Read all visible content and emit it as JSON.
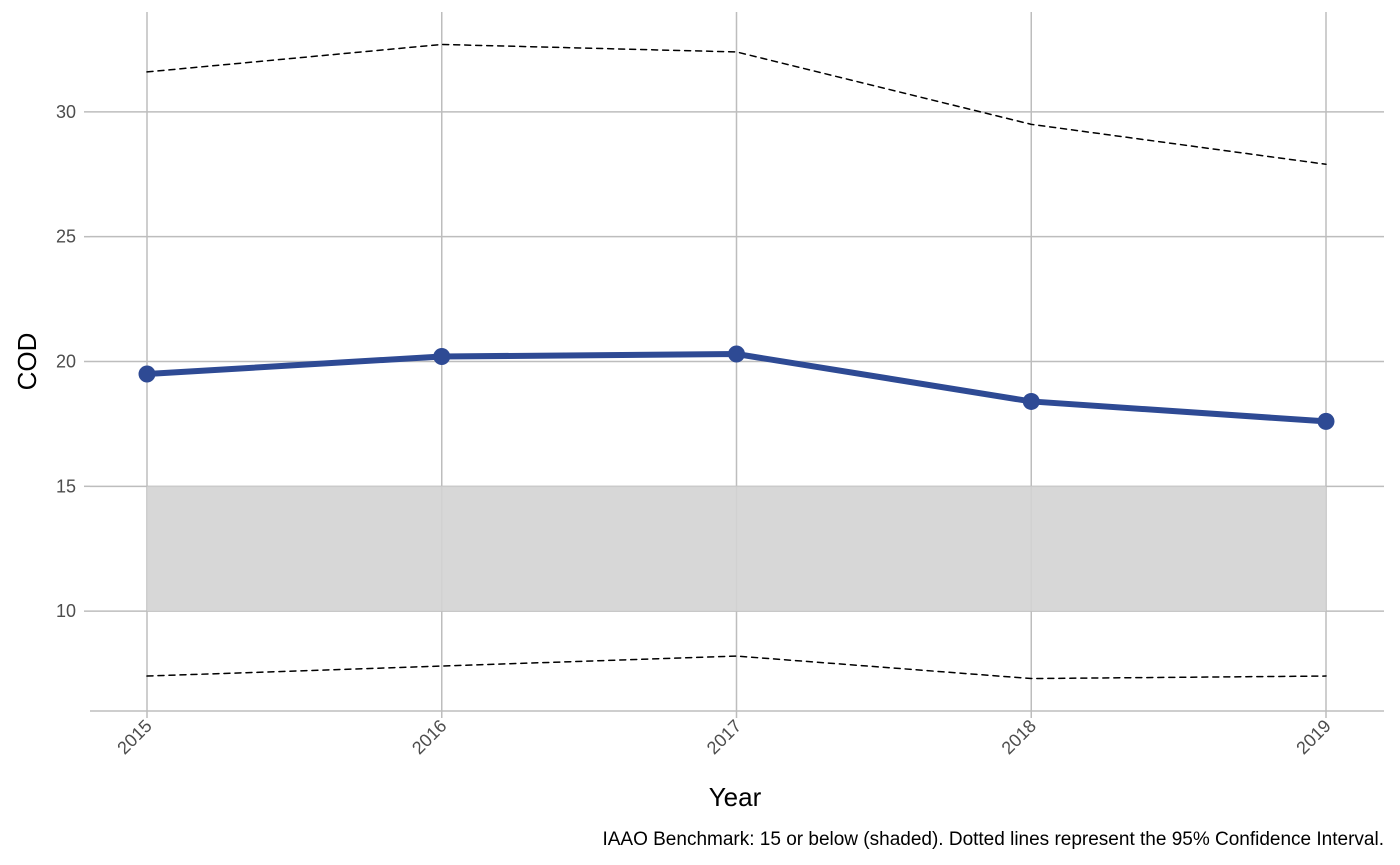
{
  "chart_data": {
    "type": "line",
    "title": "",
    "xlabel": "Year",
    "ylabel": "COD",
    "caption": "IAAO Benchmark: 15 or below (shaded). Dotted lines represent the 95% Confidence Interval.",
    "x": [
      "2015",
      "2016",
      "2017",
      "2018",
      "2019"
    ],
    "y_ticks": [
      "10",
      "15",
      "20",
      "25",
      "30"
    ],
    "ylim": [
      6,
      34
    ],
    "grid": true,
    "legend": "none",
    "series": [
      {
        "values": [
          19.5,
          20.2,
          20.3,
          18.4,
          17.6
        ],
        "color": "#2E4A94",
        "style": "solid",
        "markers": true
      },
      {
        "values": [
          31.6,
          32.7,
          32.4,
          29.5,
          27.9
        ],
        "color": "#000000",
        "style": "dashed"
      },
      {
        "values": [
          7.4,
          7.8,
          8.2,
          7.3,
          7.4
        ],
        "color": "#000000",
        "style": "dashed"
      }
    ],
    "benchmark_band": {
      "from": 10,
      "to": 15,
      "color": "#D3D3D3"
    }
  }
}
